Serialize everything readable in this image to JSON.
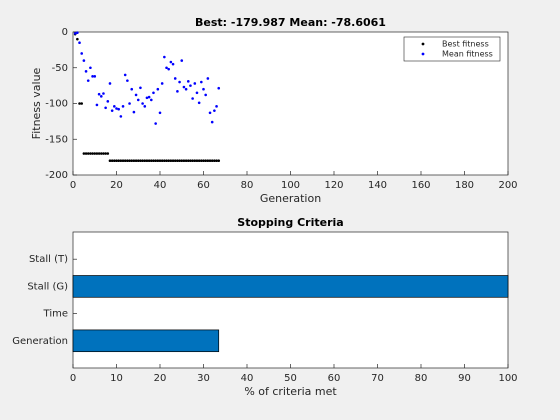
{
  "chart_data": [
    {
      "type": "scatter",
      "title": "Best: -179.987 Mean: -78.6061",
      "xlabel": "Generation",
      "ylabel": "Fitness value",
      "x": [
        1,
        2,
        3,
        4,
        5,
        6,
        7,
        8,
        9,
        10,
        11,
        12,
        13,
        14,
        15,
        16,
        17,
        18,
        19,
        20,
        21,
        22,
        23,
        24,
        25,
        26,
        27,
        28,
        29,
        30,
        31,
        32,
        33,
        34,
        35,
        36,
        37,
        38,
        39,
        40,
        41,
        42,
        43,
        44,
        45,
        46,
        47,
        48,
        49,
        50,
        51,
        52,
        53,
        54,
        55,
        56,
        57,
        58,
        59,
        60,
        61,
        62,
        63,
        64,
        65,
        66,
        67
      ],
      "series": [
        {
          "name": "Best fitness",
          "color": "#000000",
          "values": [
            -3,
            -10,
            -100,
            -100,
            -170,
            -170,
            -170,
            -170,
            -170,
            -170,
            -170,
            -170,
            -170,
            -170,
            -170,
            -170,
            -180,
            -180,
            -180,
            -180,
            -180,
            -180,
            -180,
            -180,
            -180,
            -180,
            -180,
            -180,
            -180,
            -180,
            -180,
            -180,
            -180,
            -180,
            -180,
            -180,
            -180,
            -180,
            -180,
            -180,
            -180,
            -180,
            -180,
            -180,
            -180,
            -180,
            -180,
            -180,
            -180,
            -180,
            -180,
            -180,
            -180,
            -180,
            -180,
            -180,
            -180,
            -180,
            -180,
            -180,
            -180,
            -180,
            -180,
            -180,
            -180,
            -180,
            -179.987
          ]
        },
        {
          "name": "Mean fitness",
          "color": "#0000ff",
          "values": [
            -2,
            -1,
            -15,
            -30,
            -40,
            -55,
            -68,
            -50,
            -62,
            -62,
            -102,
            -87,
            -90,
            -86,
            -106,
            -97,
            -72,
            -110,
            -104,
            -107,
            -108,
            -118,
            -104,
            -60,
            -68,
            -100,
            -80,
            -112,
            -88,
            -95,
            -78,
            -100,
            -104,
            -92,
            -91,
            -95,
            -85,
            -128,
            -80,
            -113,
            -72,
            -35,
            -50,
            -52,
            -42,
            -45,
            -65,
            -83,
            -70,
            -40,
            -77,
            -80,
            -69,
            -75,
            -93,
            -72,
            -85,
            -99,
            -70,
            -80,
            -88,
            -65,
            -113,
            -126,
            -110,
            -104,
            -78.6061
          ]
        }
      ],
      "xlim": [
        0,
        200
      ],
      "xticks": [
        0,
        20,
        40,
        60,
        80,
        100,
        120,
        140,
        160,
        180,
        200
      ],
      "ylim": [
        -200,
        0
      ],
      "yticks": [
        -200,
        -150,
        -100,
        -50,
        0
      ],
      "legend": "upper right"
    },
    {
      "type": "barh",
      "title": "Stopping Criteria",
      "xlabel": "% of criteria met",
      "categories": [
        "Generation",
        "Time",
        "Stall (G)",
        "Stall (T)"
      ],
      "values": [
        33.5,
        0,
        100,
        0
      ],
      "color": "#0072bd",
      "xlim": [
        0,
        100
      ],
      "xticks": [
        0,
        10,
        20,
        30,
        40,
        50,
        60,
        70,
        80,
        90,
        100
      ]
    }
  ]
}
